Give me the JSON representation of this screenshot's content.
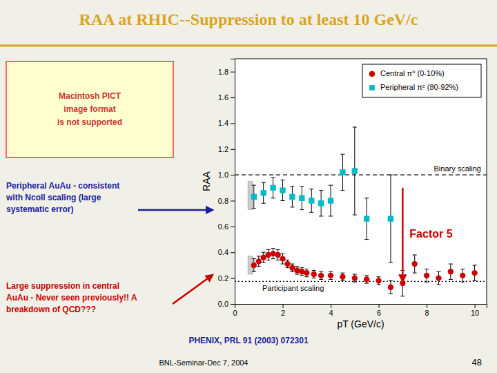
{
  "chart_data": {
    "type": "scatter",
    "title": "RAA at RHIC--Suppression to at least 10 GeV/c",
    "title_color": "#DAA520",
    "title_rule_color": "#DAA520",
    "background_color": "#F0F0E8",
    "x_label": "pT (GeV/c)",
    "y_label": "RAA",
    "xlim": [
      0,
      10.5
    ],
    "ylim": [
      0,
      1.9
    ],
    "xticks": [
      0,
      2,
      4,
      6,
      8,
      10
    ],
    "yticks": [
      {
        "value": 0,
        "label": "0.0"
      },
      0.2,
      0.4,
      0.6,
      0.8,
      {
        "value": 1.0,
        "label": "1.0"
      },
      1.2,
      1.4,
      1.6,
      1.8
    ],
    "legend": "upper-right",
    "series": [
      {
        "name": "Central π⁰ (0-10%)",
        "color": "#CC0000",
        "marker": "circle",
        "x": [
          0.8,
          1.0,
          1.2,
          1.4,
          1.6,
          1.8,
          2.0,
          2.2,
          2.4,
          2.6,
          2.8,
          3.0,
          3.3,
          3.6,
          4.0,
          4.5,
          5.0,
          5.5,
          6.0,
          6.5,
          7.0,
          7.5,
          8.0,
          8.5,
          9.0,
          9.5,
          10.0
        ],
        "values": [
          0.3,
          0.33,
          0.36,
          0.38,
          0.39,
          0.38,
          0.35,
          0.31,
          0.28,
          0.26,
          0.25,
          0.24,
          0.23,
          0.22,
          0.22,
          0.21,
          0.2,
          0.19,
          0.18,
          0.13,
          0.16,
          0.31,
          0.22,
          0.2,
          0.25,
          0.22,
          0.24
        ],
        "errors": [
          0.05,
          0.04,
          0.04,
          0.04,
          0.04,
          0.04,
          0.04,
          0.03,
          0.03,
          0.03,
          0.03,
          0.03,
          0.03,
          0.03,
          0.03,
          0.03,
          0.03,
          0.03,
          0.03,
          0.05,
          0.1,
          0.07,
          0.05,
          0.05,
          0.06,
          0.05,
          0.06
        ]
      },
      {
        "name": "Peripheral πᶜ (80-92%)",
        "color": "#00BBCC",
        "marker": "square",
        "x": [
          0.8,
          1.2,
          1.6,
          2.0,
          2.4,
          2.8,
          3.2,
          3.6,
          4.0,
          4.5,
          5.0,
          5.5,
          6.5
        ],
        "values": [
          0.83,
          0.86,
          0.9,
          0.88,
          0.83,
          0.82,
          0.8,
          0.78,
          0.8,
          1.02,
          1.03,
          0.66,
          0.66
        ],
        "errors": [
          0.09,
          0.08,
          0.08,
          0.08,
          0.08,
          0.09,
          0.09,
          0.1,
          0.12,
          0.14,
          0.34,
          0.16,
          0.34
        ]
      }
    ],
    "reference_lines": [
      {
        "value": 1.0,
        "label": "Binary scaling",
        "line_style": "dashed"
      },
      {
        "value": 0.175,
        "label": "Participant scaling",
        "line_style": "dotted"
      }
    ],
    "systematic_boxes": [
      {
        "x": [
          0.55,
          0.75
        ],
        "y": [
          0.73,
          0.95
        ]
      },
      {
        "x": [
          0.55,
          0.75
        ],
        "y": [
          0.23,
          0.37
        ]
      }
    ],
    "factor_arrow": {
      "x": 7.0,
      "from": 0.9,
      "to": 0.175,
      "label": "Factor 5",
      "color": "#CC0000"
    },
    "notes": [
      {
        "text": "Peripheral AuAu - consistent\nwith Ncoll scaling (large\nsystematic error)",
        "color": "#1C1CA0"
      },
      {
        "text": "Large suppression in central\nAuAu - Never seen previously!!  A\nbreakdown of QCD???",
        "color": "#CC0000"
      }
    ],
    "image_placeholder": {
      "text": "Macintosh PICT\nimage format\nis not supported",
      "color": "#CC3333",
      "edge_color": "#FF6666",
      "fill_color": "#FFFFD0"
    },
    "reference": {
      "text": "PHENIX, PRL 91 (2003) 072301",
      "color": "#1C1CA0"
    },
    "footer": "BNL-Seminar-Dec 7, 2004",
    "page_number": "48"
  }
}
